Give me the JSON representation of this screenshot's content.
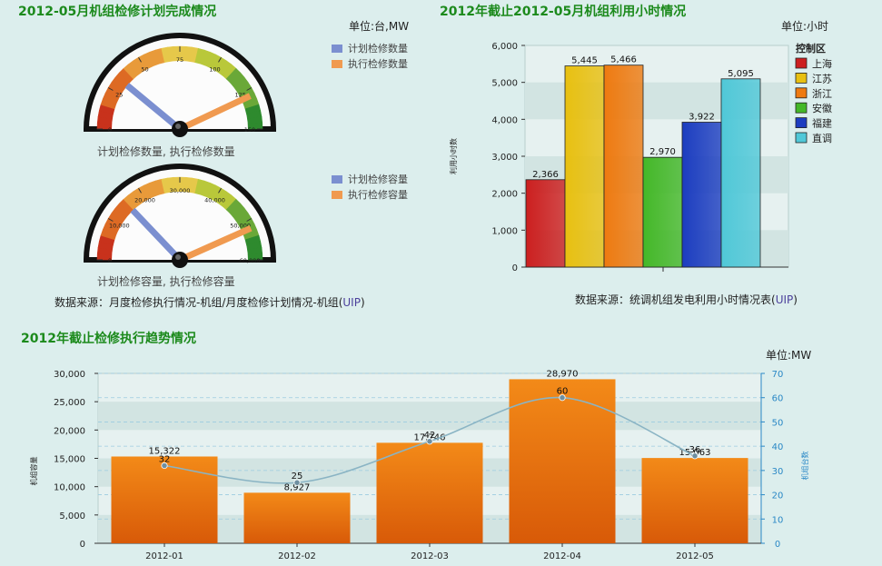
{
  "gauge_section": {
    "title": "2012-05月机组检修计划完成情况",
    "unit": "单位:台,MW",
    "gauge1": {
      "caption": "计划检修数量, 执行检修数量",
      "legend": [
        "计划检修数量",
        "执行检修数量"
      ],
      "ticks": [
        "0",
        "25",
        "50",
        "75",
        "100",
        "125",
        "150"
      ],
      "max": 150,
      "planned": 33,
      "executed": 129
    },
    "gauge2": {
      "caption": "计划检修容量, 执行检修容量",
      "legend": [
        "计划检修容量",
        "执行检修容量"
      ],
      "ticks": [
        "0",
        "10,000",
        "20,000",
        "30,000",
        "40,000",
        "50,000",
        "60,000"
      ],
      "max": 60000,
      "planned": 15500,
      "executed": 52000
    },
    "source_prefix": "数据来源：月度检修执行情况-机组/月度检修计划情况-机组(",
    "source_uip": "UIP",
    "source_suffix": ")"
  },
  "hours_section": {
    "title": "2012年截止2012-05月机组利用小时情况",
    "unit": "单位:小时",
    "source_prefix": "数据来源：统调机组发电利用小时情况表(",
    "source_uip": "UIP",
    "source_suffix": ")"
  },
  "trend_section": {
    "title": "2012年截止检修执行趋势情况",
    "unit": "单位:MW"
  },
  "chart_data": [
    {
      "type": "bar",
      "ylabel": "利用小时数",
      "ylim": [
        0,
        6000
      ],
      "yticks": [
        "0",
        "1,000",
        "2,000",
        "3,000",
        "4,000",
        "5,000",
        "6,000"
      ],
      "legend_title": "控制区",
      "legend_position": "right",
      "grid": true,
      "series": [
        {
          "name": "上海",
          "value": 2366,
          "label": "2,366",
          "color": "#cc1f1f"
        },
        {
          "name": "江苏",
          "value": 5445,
          "label": "5,445",
          "color": "#e8c010"
        },
        {
          "name": "浙江",
          "value": 5466,
          "label": "5,466",
          "color": "#ee7a10"
        },
        {
          "name": "安徽",
          "value": 2970,
          "label": "2,970",
          "color": "#44b828"
        },
        {
          "name": "福建",
          "value": 3922,
          "label": "3,922",
          "color": "#1c3dc0"
        },
        {
          "name": "直调",
          "value": 5095,
          "label": "5,095",
          "color": "#50c8d8"
        }
      ]
    },
    {
      "type": "bar",
      "categories": [
        "2012-01",
        "2012-02",
        "2012-03",
        "2012-04",
        "2012-05"
      ],
      "ylabel": "机组容量",
      "y2label": "机组台数",
      "ylim": [
        0,
        30000
      ],
      "y2lim": [
        0,
        70
      ],
      "yticks": [
        "0",
        "5,000",
        "10,000",
        "15,000",
        "20,000",
        "25,000",
        "30,000"
      ],
      "y2ticks": [
        "0",
        "10",
        "20",
        "30",
        "40",
        "50",
        "60",
        "70"
      ],
      "grid": true,
      "series": [
        {
          "name": "capacity",
          "type": "bar",
          "values": [
            15322,
            8927,
            17746,
            28970,
            15063
          ],
          "labels": [
            "15,322",
            "8,927",
            "17,746",
            "28,970",
            "15,063"
          ],
          "color": "#ee7a10"
        },
        {
          "name": "count",
          "type": "line",
          "axis": "right",
          "values": [
            32,
            25,
            42,
            60,
            36
          ],
          "labels": [
            "32",
            "25",
            "42",
            "60",
            "36"
          ],
          "color": "#8ab4c4"
        }
      ]
    }
  ]
}
